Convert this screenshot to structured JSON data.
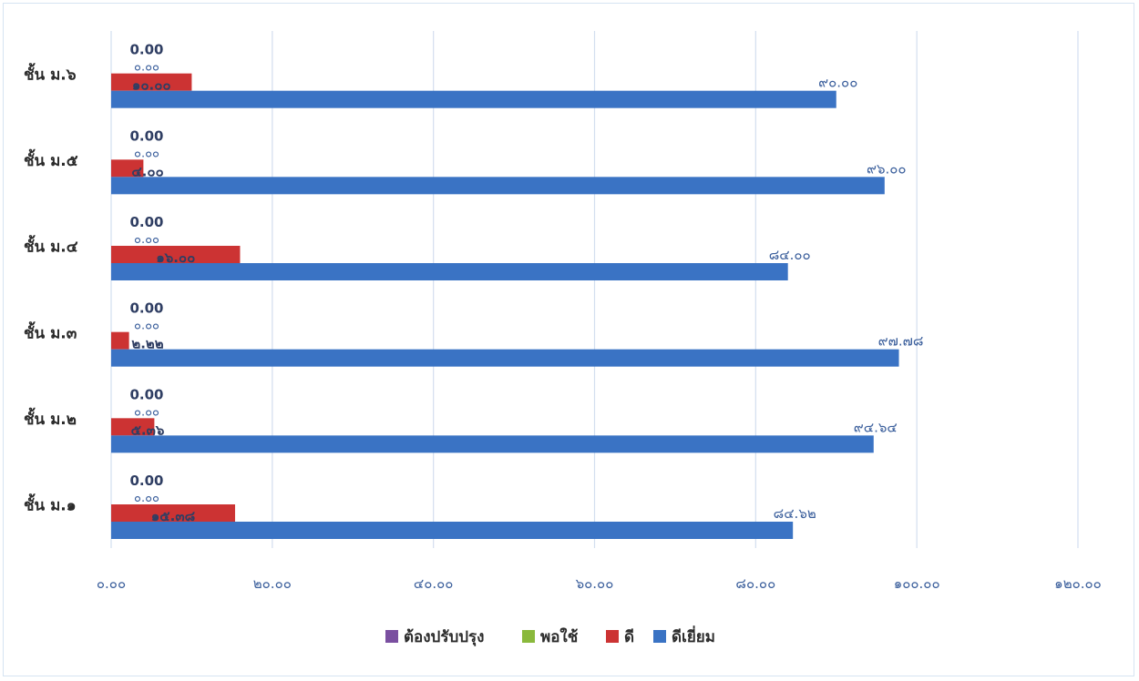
{
  "chart_data": {
    "type": "bar",
    "orientation": "horizontal",
    "categories": [
      "ชั้น ม.๑",
      "ชั้น ม.๒",
      "ชั้น ม.๓",
      "ชั้น ม.๔",
      "ชั้น ม.๕",
      "ชั้น ม.๖"
    ],
    "series": [
      {
        "name": "ต้องปรับปรุง",
        "color": "#7a4fa0",
        "values": [
          0,
          0,
          0,
          0,
          0,
          0
        ],
        "labels": [
          "0.00",
          "0.00",
          "0.00",
          "0.00",
          "0.00",
          "0.00"
        ]
      },
      {
        "name": "พอใช้",
        "color": "#8ab93c",
        "values": [
          0,
          0,
          0,
          0,
          0,
          0
        ],
        "labels": [
          "๐.๐๐",
          "๐.๐๐",
          "๐.๐๐",
          "๐.๐๐",
          "๐.๐๐",
          "๐.๐๐"
        ]
      },
      {
        "name": "ดี",
        "color": "#cc3333",
        "values": [
          15.38,
          5.36,
          2.22,
          16.0,
          4.0,
          10.0
        ],
        "labels": [
          "๑๕.๓๘",
          "๕.๓๖",
          "๒.๒๒",
          "๑๖.๐๐",
          "๔.๐๐",
          "๑๐.๐๐"
        ]
      },
      {
        "name": "ดีเยี่ยม",
        "color": "#3a73c4",
        "values": [
          84.62,
          94.64,
          97.78,
          84.0,
          96.0,
          90.0
        ],
        "labels": [
          "๘๔.๖๒",
          "๙๔.๖๔",
          "๙๗.๗๘",
          "๘๔.๐๐",
          "๙๖.๐๐",
          "๙๐.๐๐"
        ]
      }
    ],
    "xlim": [
      0,
      120
    ],
    "x_ticks": [
      0,
      20,
      40,
      60,
      80,
      100,
      120
    ],
    "x_tick_labels": [
      "๐.๐๐",
      "๒๐.๐๐",
      "๔๐.๐๐",
      "๖๐.๐๐",
      "๘๐.๐๐",
      "๑๐๐.๐๐",
      "๑๒๐.๐๐"
    ],
    "grid": "vertical",
    "legend_position": "bottom",
    "title": "",
    "xlabel": "",
    "ylabel": ""
  }
}
